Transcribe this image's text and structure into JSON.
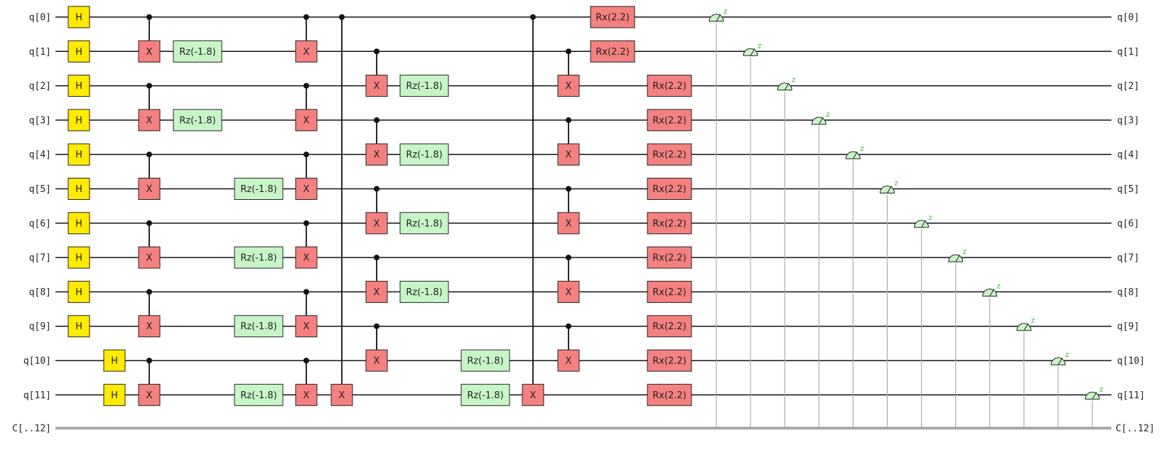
{
  "circuit": {
    "qubit_labels": [
      "q[0]",
      "q[1]",
      "q[2]",
      "q[3]",
      "q[4]",
      "q[5]",
      "q[6]",
      "q[7]",
      "q[8]",
      "q[9]",
      "q[10]",
      "q[11]"
    ],
    "classical_label": "C[..12]",
    "measure_basis_label": "z",
    "colors": {
      "h_fill": "#ffeb00",
      "x_fill": "#f48080",
      "rz_fill": "#c8f5c8",
      "rx_fill": "#f48080",
      "wire": "#111111",
      "classical_wire": "#aaaaaa",
      "measure_fill": "#c8f5c8",
      "measure_z": "#2db82d"
    },
    "gates": [
      {
        "type": "H",
        "label": "H",
        "qubit": 0,
        "col": 0
      },
      {
        "type": "H",
        "label": "H",
        "qubit": 1,
        "col": 0
      },
      {
        "type": "H",
        "label": "H",
        "qubit": 2,
        "col": 0
      },
      {
        "type": "H",
        "label": "H",
        "qubit": 3,
        "col": 0
      },
      {
        "type": "H",
        "label": "H",
        "qubit": 4,
        "col": 0
      },
      {
        "type": "H",
        "label": "H",
        "qubit": 5,
        "col": 0
      },
      {
        "type": "H",
        "label": "H",
        "qubit": 6,
        "col": 0
      },
      {
        "type": "H",
        "label": "H",
        "qubit": 7,
        "col": 0
      },
      {
        "type": "H",
        "label": "H",
        "qubit": 8,
        "col": 0
      },
      {
        "type": "H",
        "label": "H",
        "qubit": 9,
        "col": 0
      },
      {
        "type": "H",
        "label": "H",
        "qubit": 10,
        "col": 1
      },
      {
        "type": "H",
        "label": "H",
        "qubit": 11,
        "col": 1
      },
      {
        "type": "CX",
        "label": "X",
        "control": 0,
        "target": 1,
        "col": 2
      },
      {
        "type": "CX",
        "label": "X",
        "control": 2,
        "target": 3,
        "col": 2
      },
      {
        "type": "CX",
        "label": "X",
        "control": 4,
        "target": 5,
        "col": 2
      },
      {
        "type": "CX",
        "label": "X",
        "control": 6,
        "target": 7,
        "col": 2
      },
      {
        "type": "CX",
        "label": "X",
        "control": 8,
        "target": 9,
        "col": 2
      },
      {
        "type": "CX",
        "label": "X",
        "control": 10,
        "target": 11,
        "col": 2
      },
      {
        "type": "RZ",
        "label": "Rz(-1.8)",
        "qubit": 1,
        "col": 3
      },
      {
        "type": "RZ",
        "label": "Rz(-1.8)",
        "qubit": 3,
        "col": 3
      },
      {
        "type": "RZ",
        "label": "Rz(-1.8)",
        "qubit": 5,
        "col": 4
      },
      {
        "type": "RZ",
        "label": "Rz(-1.8)",
        "qubit": 7,
        "col": 4
      },
      {
        "type": "RZ",
        "label": "Rz(-1.8)",
        "qubit": 9,
        "col": 4
      },
      {
        "type": "RZ",
        "label": "Rz(-1.8)",
        "qubit": 11,
        "col": 4
      },
      {
        "type": "CX",
        "label": "X",
        "control": 0,
        "target": 1,
        "col": 5
      },
      {
        "type": "CX",
        "label": "X",
        "control": 2,
        "target": 3,
        "col": 5
      },
      {
        "type": "CX",
        "label": "X",
        "control": 4,
        "target": 5,
        "col": 5
      },
      {
        "type": "CX",
        "label": "X",
        "control": 6,
        "target": 7,
        "col": 5
      },
      {
        "type": "CX",
        "label": "X",
        "control": 8,
        "target": 9,
        "col": 5
      },
      {
        "type": "CX",
        "label": "X",
        "control": 10,
        "target": 11,
        "col": 5
      },
      {
        "type": "CX",
        "label": "X",
        "control": 0,
        "target": 11,
        "col": 6
      },
      {
        "type": "CX",
        "label": "X",
        "control": 1,
        "target": 2,
        "col": 7
      },
      {
        "type": "CX",
        "label": "X",
        "control": 3,
        "target": 4,
        "col": 7
      },
      {
        "type": "CX",
        "label": "X",
        "control": 5,
        "target": 6,
        "col": 7
      },
      {
        "type": "CX",
        "label": "X",
        "control": 7,
        "target": 8,
        "col": 7
      },
      {
        "type": "CX",
        "label": "X",
        "control": 9,
        "target": 10,
        "col": 7
      },
      {
        "type": "RZ",
        "label": "Rz(-1.8)",
        "qubit": 2,
        "col": 8
      },
      {
        "type": "RZ",
        "label": "Rz(-1.8)",
        "qubit": 4,
        "col": 8
      },
      {
        "type": "RZ",
        "label": "Rz(-1.8)",
        "qubit": 6,
        "col": 8
      },
      {
        "type": "RZ",
        "label": "Rz(-1.8)",
        "qubit": 8,
        "col": 8
      },
      {
        "type": "RZ",
        "label": "Rz(-1.8)",
        "qubit": 10,
        "col": 9
      },
      {
        "type": "RZ",
        "label": "Rz(-1.8)",
        "qubit": 11,
        "col": 9
      },
      {
        "type": "CX",
        "label": "X",
        "control": 0,
        "target": 11,
        "col": 10
      },
      {
        "type": "CX",
        "label": "X",
        "control": 1,
        "target": 2,
        "col": 11
      },
      {
        "type": "CX",
        "label": "X",
        "control": 3,
        "target": 4,
        "col": 11
      },
      {
        "type": "CX",
        "label": "X",
        "control": 5,
        "target": 6,
        "col": 11
      },
      {
        "type": "CX",
        "label": "X",
        "control": 7,
        "target": 8,
        "col": 11
      },
      {
        "type": "CX",
        "label": "X",
        "control": 9,
        "target": 10,
        "col": 11
      },
      {
        "type": "RX",
        "label": "Rx(2.2)",
        "qubit": 0,
        "col": 12
      },
      {
        "type": "RX",
        "label": "Rx(2.2)",
        "qubit": 1,
        "col": 12
      },
      {
        "type": "RX",
        "label": "Rx(2.2)",
        "qubit": 2,
        "col": 13
      },
      {
        "type": "RX",
        "label": "Rx(2.2)",
        "qubit": 3,
        "col": 13
      },
      {
        "type": "RX",
        "label": "Rx(2.2)",
        "qubit": 4,
        "col": 13
      },
      {
        "type": "RX",
        "label": "Rx(2.2)",
        "qubit": 5,
        "col": 13
      },
      {
        "type": "RX",
        "label": "Rx(2.2)",
        "qubit": 6,
        "col": 13
      },
      {
        "type": "RX",
        "label": "Rx(2.2)",
        "qubit": 7,
        "col": 13
      },
      {
        "type": "RX",
        "label": "Rx(2.2)",
        "qubit": 8,
        "col": 13
      },
      {
        "type": "RX",
        "label": "Rx(2.2)",
        "qubit": 9,
        "col": 13
      },
      {
        "type": "RX",
        "label": "Rx(2.2)",
        "qubit": 10,
        "col": 13
      },
      {
        "type": "RX",
        "label": "Rx(2.2)",
        "qubit": 11,
        "col": 13
      }
    ],
    "measurements": [
      0,
      1,
      2,
      3,
      4,
      5,
      6,
      7,
      8,
      9,
      10,
      11
    ]
  }
}
